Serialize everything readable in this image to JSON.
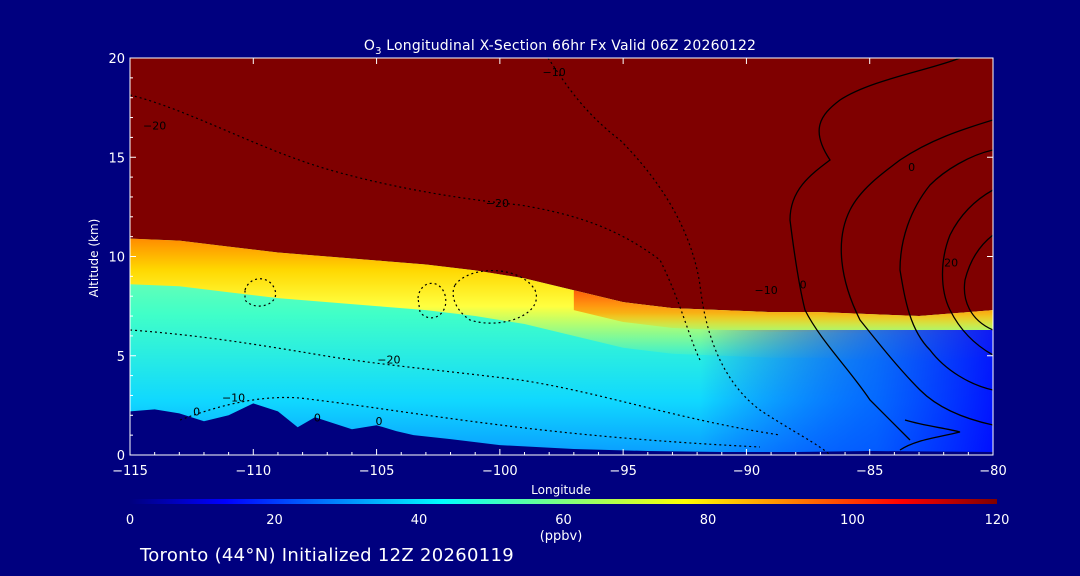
{
  "chart_data": {
    "type": "heatmap",
    "title_prefix": "O",
    "title_subscript": "3",
    "title_rest": " Longitudinal X-Section 66hr  Fx Valid 06Z 20260122",
    "xlabel": "Longitude",
    "ylabel": "Altitude (km)",
    "xlim": [
      -115,
      -80
    ],
    "ylim": [
      0,
      20
    ],
    "x_ticks": [
      -115,
      -110,
      -105,
      -100,
      -95,
      -90,
      -85,
      -80
    ],
    "x_tick_labels": [
      "−115",
      "−110",
      "−105",
      "−100",
      "−95",
      "−90",
      "−85",
      "−80"
    ],
    "y_ticks": [
      0,
      5,
      10,
      15,
      20
    ],
    "y_tick_labels": [
      "0",
      "5",
      "10",
      "15",
      "20"
    ],
    "colorbar": {
      "label": "(ppbv)",
      "min": 0,
      "max": 120,
      "ticks": [
        0,
        20,
        40,
        60,
        80,
        100,
        120
      ],
      "tick_labels": [
        "0",
        "20",
        "40",
        "60",
        "80",
        "100",
        "120"
      ]
    },
    "tropopause_km": [
      [
        -115,
        10.9
      ],
      [
        -113,
        10.8
      ],
      [
        -111,
        10.5
      ],
      [
        -109,
        10.2
      ],
      [
        -107,
        10.0
      ],
      [
        -105,
        9.8
      ],
      [
        -103,
        9.6
      ],
      [
        -101,
        9.3
      ],
      [
        -99,
        8.9
      ],
      [
        -97,
        8.3
      ],
      [
        -95,
        7.7
      ],
      [
        -93,
        7.4
      ],
      [
        -91,
        7.3
      ],
      [
        -89,
        7.2
      ],
      [
        -87,
        7.2
      ],
      [
        -85,
        7.1
      ],
      [
        -83,
        7.0
      ],
      [
        -81,
        7.2
      ],
      [
        -80,
        7.3
      ]
    ],
    "terrain_km": [
      [
        -115,
        2.2
      ],
      [
        -114,
        2.3
      ],
      [
        -113,
        2.1
      ],
      [
        -112,
        1.7
      ],
      [
        -111,
        2.0
      ],
      [
        -110,
        2.6
      ],
      [
        -109,
        2.2
      ],
      [
        -108.2,
        1.4
      ],
      [
        -107.5,
        1.9
      ],
      [
        -107,
        1.7
      ],
      [
        -106,
        1.3
      ],
      [
        -105,
        1.5
      ],
      [
        -104.2,
        1.2
      ],
      [
        -103.5,
        1.0
      ],
      [
        -102,
        0.8
      ],
      [
        -100,
        0.5
      ],
      [
        -97,
        0.3
      ],
      [
        -94,
        0.2
      ],
      [
        -91,
        0.15
      ],
      [
        -88,
        0.15
      ],
      [
        -85,
        0.2
      ],
      [
        -80,
        0.15
      ]
    ],
    "contour_labels": [
      {
        "text": "−10",
        "lon": -97.8,
        "alt": 19.1
      },
      {
        "text": "−20",
        "lon": -114.0,
        "alt": 16.4
      },
      {
        "text": "−20",
        "lon": -100.1,
        "alt": 12.5
      },
      {
        "text": "−10",
        "lon": -89.2,
        "alt": 8.1
      },
      {
        "text": "−20",
        "lon": -104.5,
        "alt": 4.6
      },
      {
        "text": "−10",
        "lon": -110.8,
        "alt": 2.7
      },
      {
        "text": "0",
        "lon": -112.3,
        "alt": 2.0
      },
      {
        "text": "0",
        "lon": -107.4,
        "alt": 1.7
      },
      {
        "text": "0",
        "lon": -104.9,
        "alt": 1.5
      },
      {
        "text": "0",
        "lon": -87.7,
        "alt": 8.4
      },
      {
        "text": "0",
        "lon": -83.3,
        "alt": 14.3
      },
      {
        "text": "20",
        "lon": -81.7,
        "alt": 9.5
      }
    ]
  },
  "footer_text": "Toronto (44°N) Initialized 12Z 20260119"
}
